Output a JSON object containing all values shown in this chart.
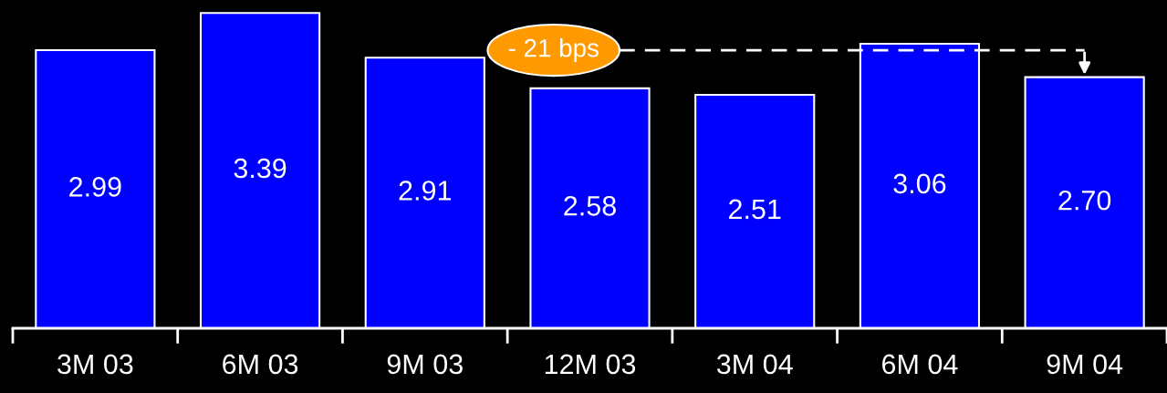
{
  "chart_data": {
    "type": "bar",
    "categories": [
      "3M 03",
      "6M 03",
      "9M 03",
      "12M 03",
      "3M 04",
      "6M 04",
      "9M 04"
    ],
    "values": [
      2.99,
      3.39,
      2.91,
      2.58,
      2.51,
      3.06,
      2.7
    ],
    "value_labels": [
      "2.99",
      "3.39",
      "2.91",
      "2.58",
      "2.51",
      "3.06",
      "2.70"
    ],
    "color": "#0000ff",
    "ylim": [
      0,
      3.53
    ],
    "grid": false,
    "legend": false,
    "annotations": [
      "- 21 bps"
    ]
  }
}
